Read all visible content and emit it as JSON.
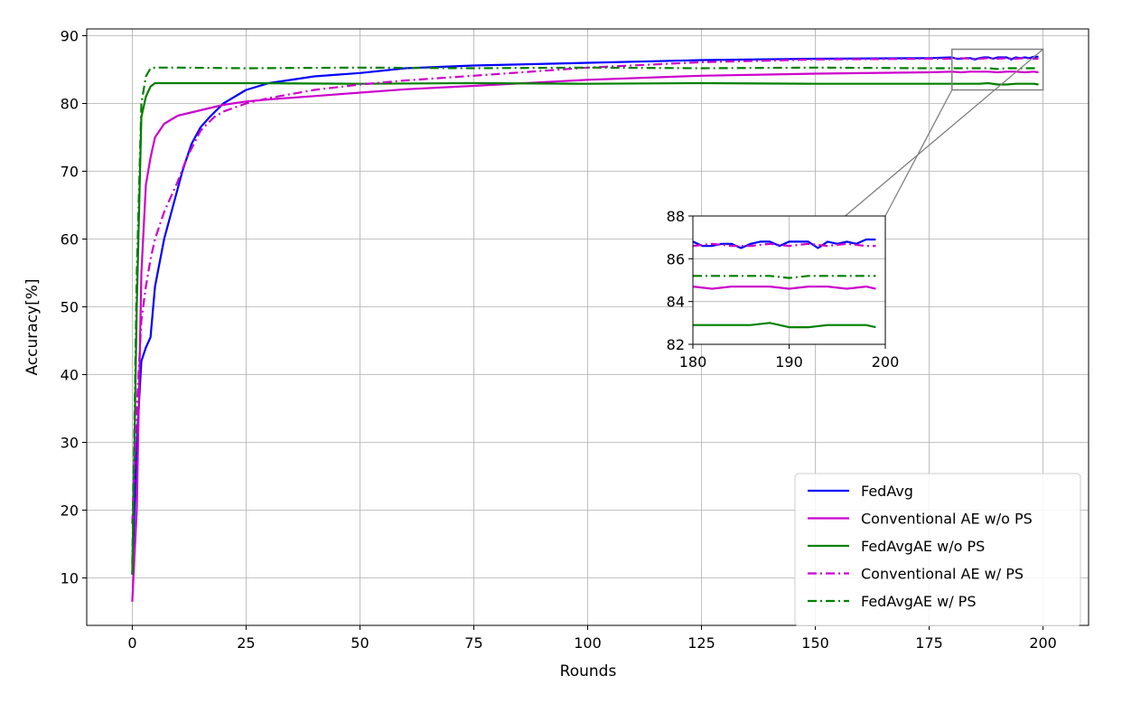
{
  "chart_data": {
    "type": "line",
    "title": "",
    "xlabel": "Rounds",
    "ylabel": "Accuracy[%]",
    "xlim": [
      -10,
      210
    ],
    "ylim": [
      3,
      91
    ],
    "xticks": [
      0,
      25,
      50,
      75,
      100,
      125,
      150,
      175,
      200
    ],
    "yticks": [
      10,
      20,
      30,
      40,
      50,
      60,
      70,
      80,
      90
    ],
    "grid": true,
    "legend_position": "lower-right",
    "series": [
      {
        "name": "FedAvg",
        "color": "#0000ff",
        "linestyle": "solid",
        "points": [
          [
            0,
            10.5
          ],
          [
            1,
            30
          ],
          [
            2,
            42
          ],
          [
            3,
            44
          ],
          [
            4,
            45.5
          ],
          [
            5,
            53
          ],
          [
            7,
            60
          ],
          [
            9,
            65
          ],
          [
            11,
            70
          ],
          [
            13,
            74
          ],
          [
            15,
            76.5
          ],
          [
            17,
            78
          ],
          [
            20,
            80
          ],
          [
            25,
            82
          ],
          [
            30,
            83
          ],
          [
            40,
            84
          ],
          [
            50,
            84.5
          ],
          [
            60,
            85.2
          ],
          [
            75,
            85.6
          ],
          [
            100,
            86
          ],
          [
            125,
            86.4
          ],
          [
            150,
            86.6
          ],
          [
            175,
            86.7
          ],
          [
            180,
            86.8
          ],
          [
            181,
            86.6
          ],
          [
            182,
            86.6
          ],
          [
            183,
            86.7
          ],
          [
            184,
            86.7
          ],
          [
            185,
            86.5
          ],
          [
            186,
            86.7
          ],
          [
            187,
            86.8
          ],
          [
            188,
            86.8
          ],
          [
            189,
            86.6
          ],
          [
            190,
            86.8
          ],
          [
            191,
            86.8
          ],
          [
            192,
            86.8
          ],
          [
            193,
            86.5
          ],
          [
            194,
            86.8
          ],
          [
            195,
            86.7
          ],
          [
            196,
            86.8
          ],
          [
            197,
            86.7
          ],
          [
            198,
            86.9
          ],
          [
            199,
            86.9
          ]
        ]
      },
      {
        "name": "Conventional AE w/o PS",
        "color": "#cc00cc",
        "linestyle": "solid",
        "points": [
          [
            0,
            6.5
          ],
          [
            1,
            20
          ],
          [
            2,
            55
          ],
          [
            3,
            68
          ],
          [
            4,
            72
          ],
          [
            5,
            75
          ],
          [
            7,
            77
          ],
          [
            10,
            78.2
          ],
          [
            15,
            79
          ],
          [
            20,
            79.8
          ],
          [
            25,
            80.3
          ],
          [
            30,
            80.6
          ],
          [
            40,
            81.1
          ],
          [
            50,
            81.6
          ],
          [
            60,
            82.1
          ],
          [
            75,
            82.6
          ],
          [
            100,
            83.5
          ],
          [
            125,
            84.1
          ],
          [
            150,
            84.4
          ],
          [
            175,
            84.6
          ],
          [
            180,
            84.7
          ],
          [
            182,
            84.6
          ],
          [
            184,
            84.7
          ],
          [
            186,
            84.7
          ],
          [
            188,
            84.7
          ],
          [
            190,
            84.6
          ],
          [
            192,
            84.7
          ],
          [
            194,
            84.7
          ],
          [
            196,
            84.6
          ],
          [
            198,
            84.7
          ],
          [
            199,
            84.6
          ]
        ]
      },
      {
        "name": "FedAvgAE w/o PS",
        "color": "#008000",
        "linestyle": "solid",
        "points": [
          [
            0,
            10.5
          ],
          [
            1,
            50
          ],
          [
            2,
            78
          ],
          [
            3,
            81
          ],
          [
            4,
            82.5
          ],
          [
            5,
            83
          ],
          [
            10,
            83
          ],
          [
            25,
            83
          ],
          [
            50,
            82.9
          ],
          [
            75,
            83
          ],
          [
            100,
            82.9
          ],
          [
            125,
            83
          ],
          [
            150,
            82.9
          ],
          [
            175,
            82.9
          ],
          [
            180,
            82.9
          ],
          [
            182,
            82.9
          ],
          [
            184,
            82.9
          ],
          [
            186,
            82.9
          ],
          [
            188,
            83
          ],
          [
            190,
            82.8
          ],
          [
            192,
            82.8
          ],
          [
            194,
            82.9
          ],
          [
            196,
            82.9
          ],
          [
            198,
            82.9
          ],
          [
            199,
            82.8
          ]
        ]
      },
      {
        "name": "Conventional AE w/ PS",
        "color": "#cc00cc",
        "linestyle": "dashdot",
        "points": [
          [
            0,
            18
          ],
          [
            1,
            35
          ],
          [
            2,
            48
          ],
          [
            3,
            53
          ],
          [
            4,
            57
          ],
          [
            5,
            60
          ],
          [
            7,
            64
          ],
          [
            10,
            68.5
          ],
          [
            12,
            72
          ],
          [
            15,
            76
          ],
          [
            18,
            78
          ],
          [
            20,
            78.8
          ],
          [
            25,
            80
          ],
          [
            30,
            80.8
          ],
          [
            40,
            82
          ],
          [
            50,
            82.8
          ],
          [
            60,
            83.4
          ],
          [
            75,
            84.1
          ],
          [
            100,
            85.3
          ],
          [
            125,
            86.1
          ],
          [
            150,
            86.5
          ],
          [
            175,
            86.6
          ],
          [
            180,
            86.6
          ],
          [
            182,
            86.7
          ],
          [
            184,
            86.6
          ],
          [
            186,
            86.6
          ],
          [
            188,
            86.7
          ],
          [
            190,
            86.6
          ],
          [
            192,
            86.7
          ],
          [
            194,
            86.6
          ],
          [
            196,
            86.7
          ],
          [
            198,
            86.6
          ],
          [
            199,
            86.6
          ]
        ]
      },
      {
        "name": "FedAvgAE w/ PS",
        "color": "#008000",
        "linestyle": "dashdot",
        "points": [
          [
            0,
            12
          ],
          [
            1,
            55
          ],
          [
            2,
            80
          ],
          [
            3,
            84
          ],
          [
            4,
            85.2
          ],
          [
            5,
            85.3
          ],
          [
            10,
            85.3
          ],
          [
            25,
            85.2
          ],
          [
            50,
            85.3
          ],
          [
            75,
            85.2
          ],
          [
            100,
            85.3
          ],
          [
            125,
            85.2
          ],
          [
            150,
            85.3
          ],
          [
            175,
            85.2
          ],
          [
            180,
            85.2
          ],
          [
            182,
            85.2
          ],
          [
            184,
            85.2
          ],
          [
            186,
            85.2
          ],
          [
            188,
            85.2
          ],
          [
            190,
            85.1
          ],
          [
            192,
            85.2
          ],
          [
            194,
            85.2
          ],
          [
            196,
            85.2
          ],
          [
            198,
            85.2
          ],
          [
            199,
            85.2
          ]
        ]
      }
    ],
    "inset": {
      "xlim": [
        180,
        200
      ],
      "ylim": [
        82,
        88
      ],
      "xticks": [
        180,
        190,
        200
      ],
      "yticks": [
        82,
        84,
        86,
        88
      ]
    }
  }
}
